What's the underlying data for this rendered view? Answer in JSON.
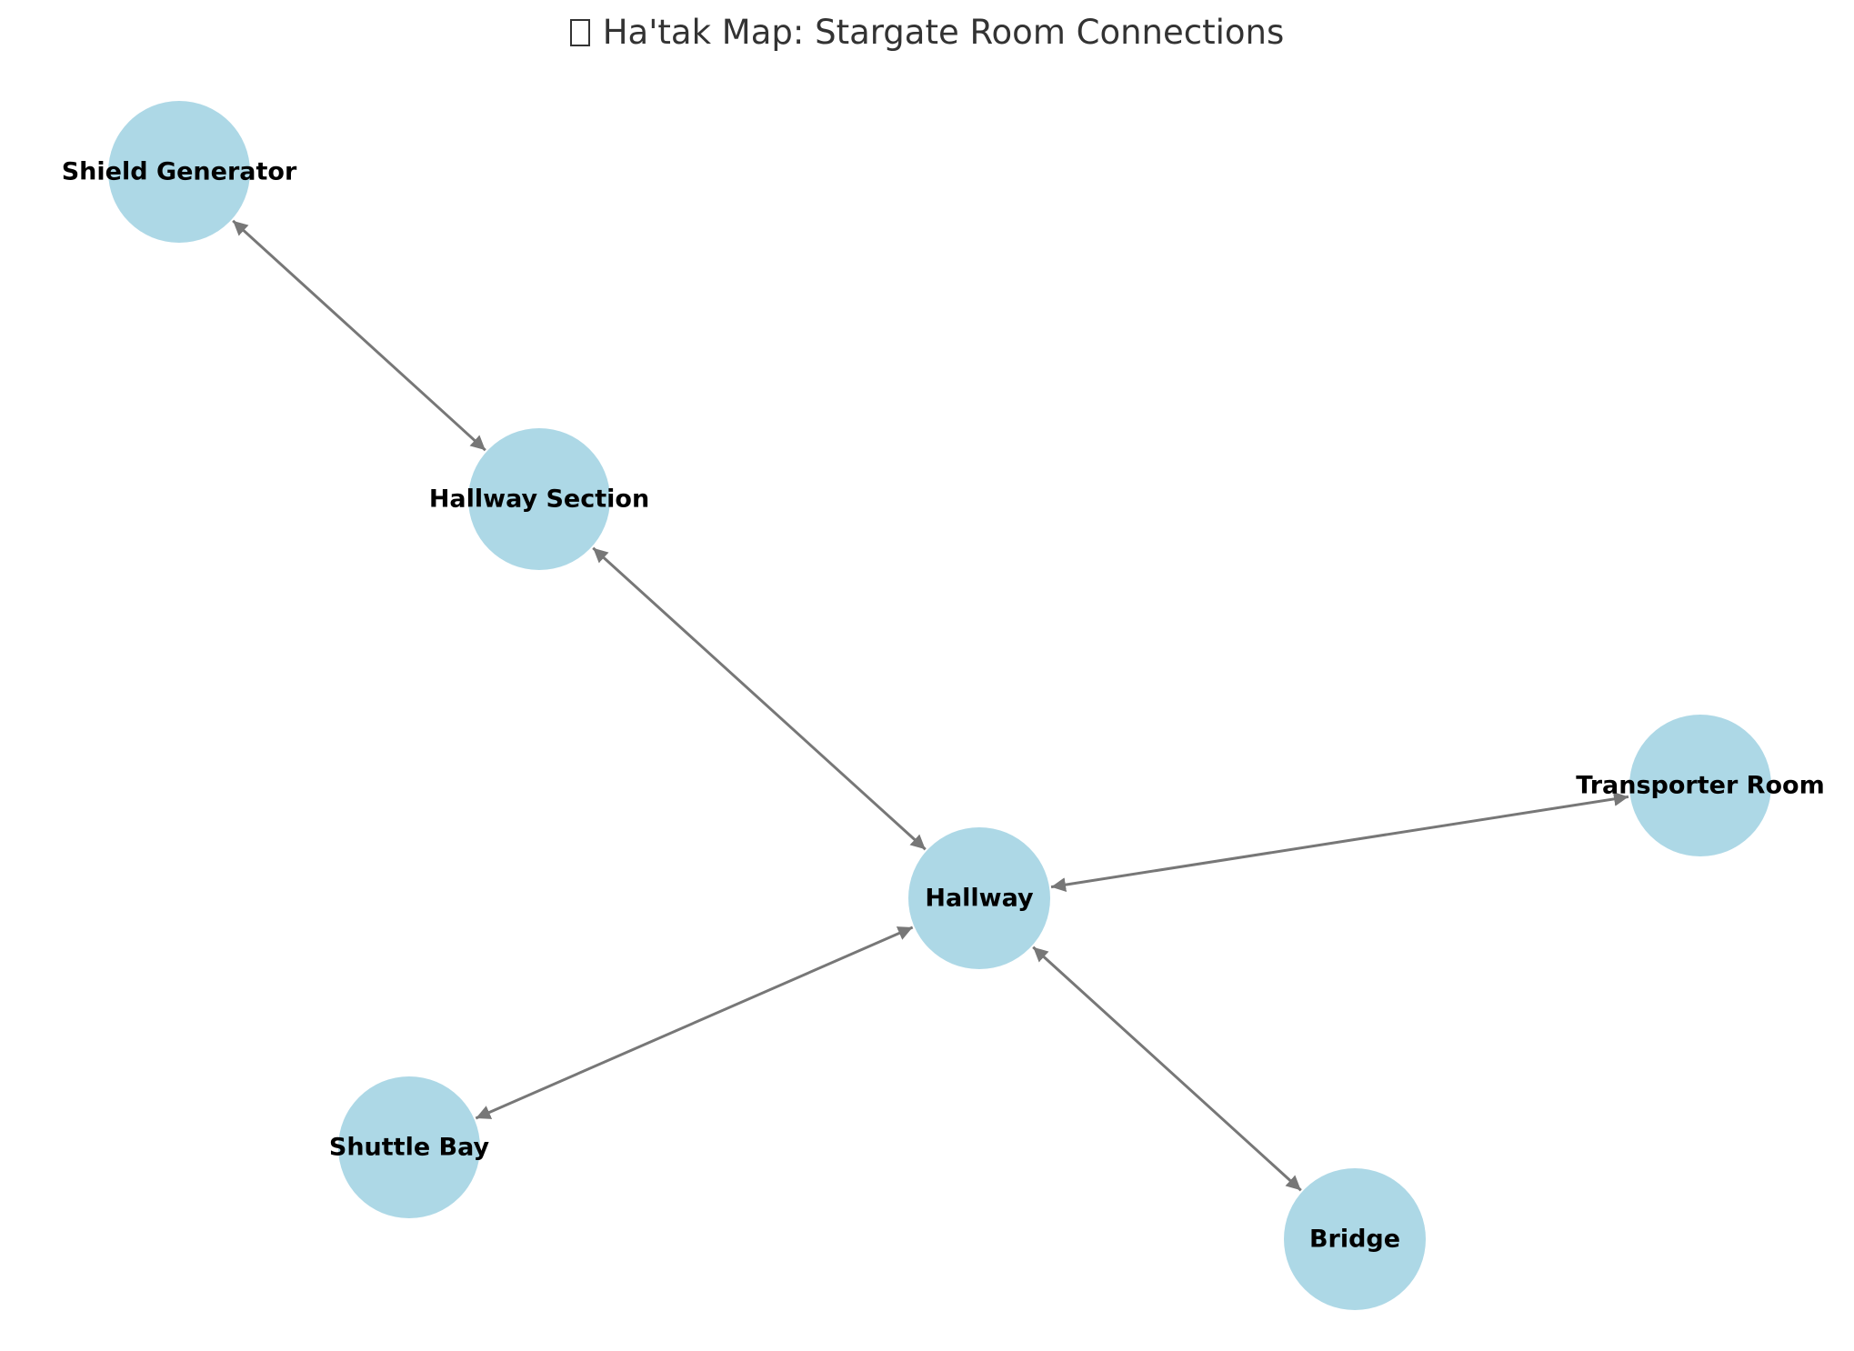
{
  "title": "Ha'tak Map: Stargate Room Connections",
  "title_glyph": "missing-glyph-box",
  "colors": {
    "node_fill": "#add8e6",
    "edge": "#777777",
    "label": "#000000",
    "title": "#333333",
    "background": "#ffffff"
  },
  "graph": {
    "directed": true,
    "bidirectional_arrows": true,
    "nodes": [
      {
        "id": "shield-generator",
        "label": "Shield Generator"
      },
      {
        "id": "hallway-section",
        "label": "Hallway Section"
      },
      {
        "id": "hallway",
        "label": "Hallway"
      },
      {
        "id": "transporter-room",
        "label": "Transporter Room"
      },
      {
        "id": "shuttle-bay",
        "label": "Shuttle Bay"
      },
      {
        "id": "bridge",
        "label": "Bridge"
      }
    ],
    "edges": [
      {
        "from": "shield-generator",
        "to": "hallway-section"
      },
      {
        "from": "hallway-section",
        "to": "hallway"
      },
      {
        "from": "hallway",
        "to": "transporter-room"
      },
      {
        "from": "hallway",
        "to": "shuttle-bay"
      },
      {
        "from": "hallway",
        "to": "bridge"
      }
    ]
  }
}
